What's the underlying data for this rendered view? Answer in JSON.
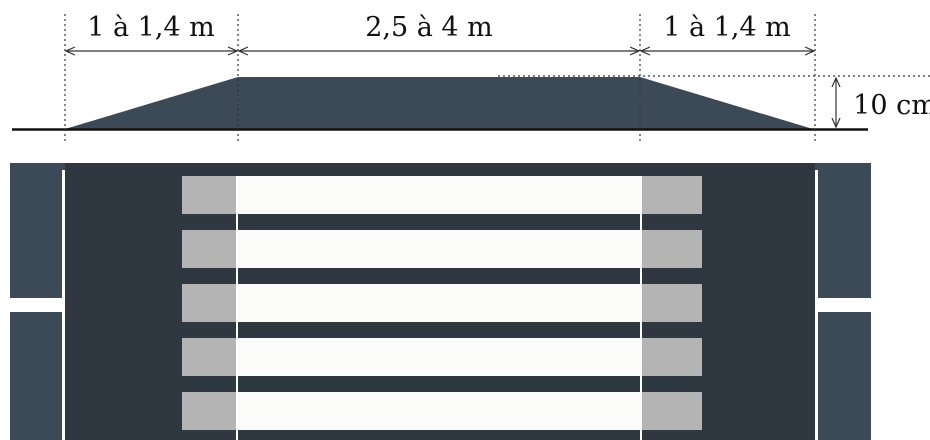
{
  "labels": {
    "ramp_left": "1 à 1,4 m",
    "plateau": "2,5 à 4 m",
    "ramp_right": "1 à 1,4 m",
    "height": "10 cm"
  },
  "colors": {
    "road": "#3c4a58",
    "raised_plateau": "#2f3740",
    "stripe": "#fcfcfa",
    "stripe_on_ramp": "#b4b4b4",
    "ground_line": "#111111",
    "dimension_line": "#333333"
  },
  "icons": {
    "dimension_arrow": "arrowhead"
  }
}
